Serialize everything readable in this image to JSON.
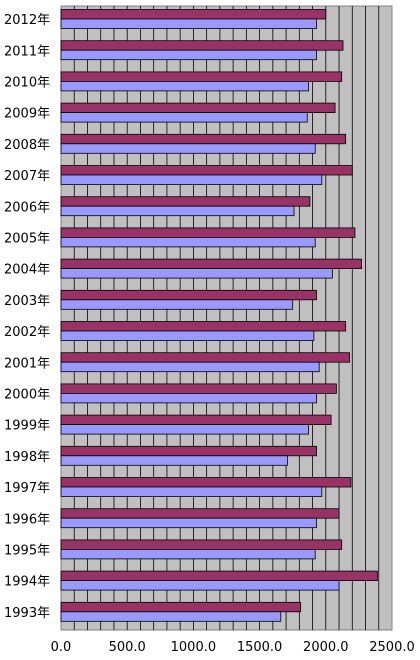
{
  "chart_data": {
    "type": "bar",
    "orientation": "horizontal",
    "categories": [
      "2012年",
      "2011年",
      "2010年",
      "2009年",
      "2008年",
      "2007年",
      "2006年",
      "2005年",
      "2004年",
      "2003年",
      "2002年",
      "2001年",
      "2000年",
      "1999年",
      "1998年",
      "1997年",
      "1996年",
      "1995年",
      "1994年",
      "1993年"
    ],
    "series": [
      {
        "color": "#993366",
        "values": [
          2000,
          2130,
          2120,
          2070,
          2150,
          2200,
          1880,
          2220,
          2270,
          1930,
          2150,
          2180,
          2080,
          2040,
          1930,
          2190,
          2100,
          2120,
          2390,
          1810
        ]
      },
      {
        "color": "#9999ff",
        "values": [
          1930,
          1930,
          1870,
          1860,
          1920,
          1970,
          1760,
          1920,
          2050,
          1750,
          1910,
          1950,
          1930,
          1870,
          1710,
          1970,
          1930,
          1920,
          2100,
          1660
        ]
      }
    ],
    "xlim": [
      0,
      2500
    ],
    "xticks": [
      "0.0",
      "500.0",
      "1000.0",
      "1500.0",
      "2000.0",
      "2500.0"
    ],
    "grid": true,
    "plot_background": "#c0c0c0",
    "legend": "none"
  }
}
